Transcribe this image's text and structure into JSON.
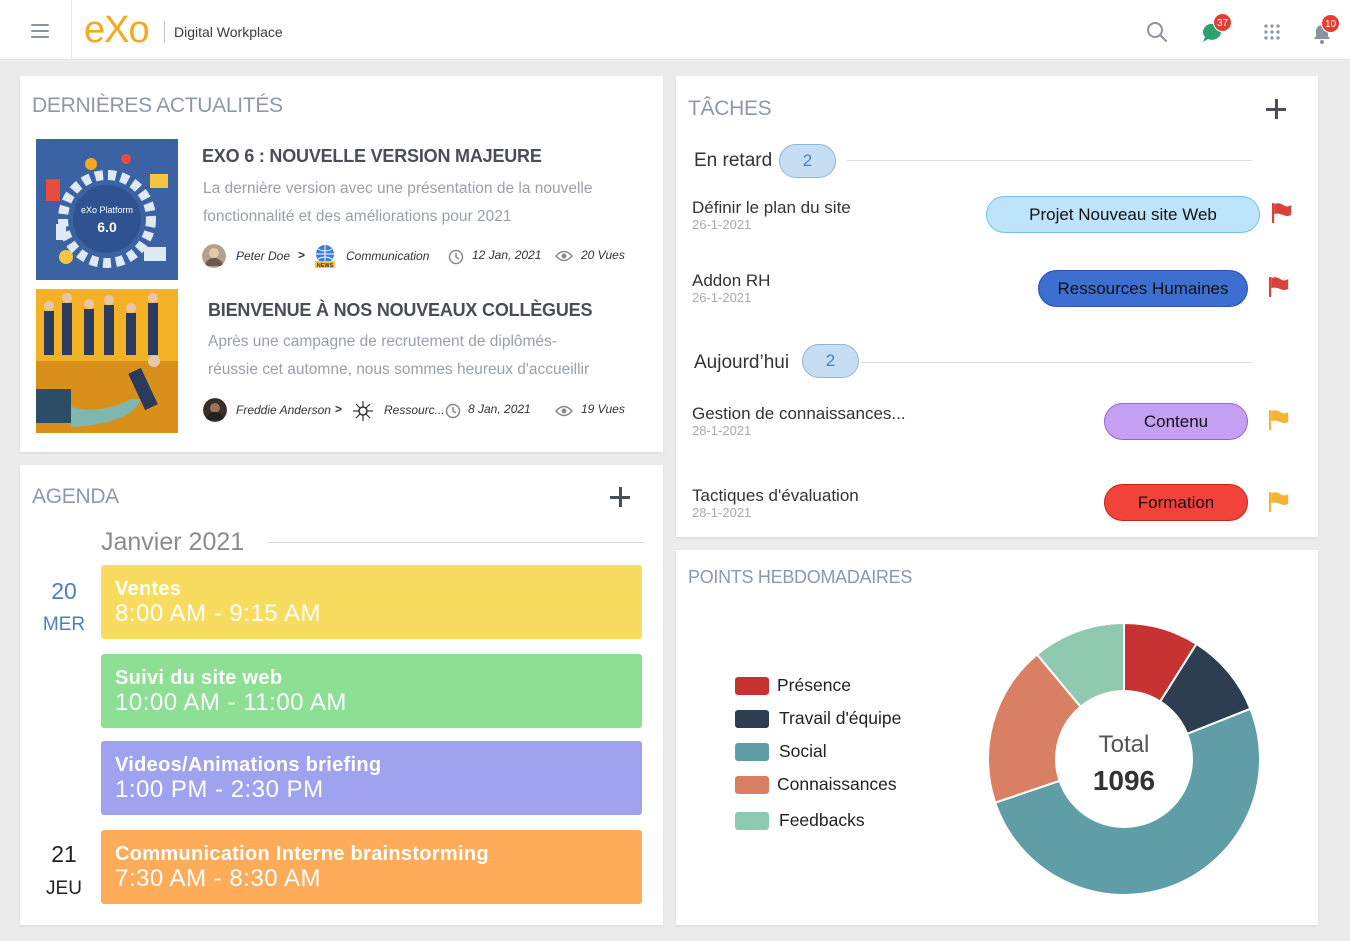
{
  "header": {
    "logo": "eXo",
    "brand": "Digital Workplace",
    "chat_badge": "37",
    "notif_badge": "10"
  },
  "news": {
    "title": "DERNIÈRES ACTUALITÉS",
    "items": [
      {
        "title": "EXO 6 : NOUVELLE VERSION MAJEURE",
        "desc_line1": "La dernière version avec une présentation de la nouvelle",
        "desc_line2": "fonctionnalité et des améliorations pour 2021",
        "author": "Peter Doe",
        "space": "Communication",
        "date": "12 Jan, 2021",
        "views": "20 Vues",
        "image_label1": "eXo Platform",
        "image_label2": "6.0"
      },
      {
        "title": "BIENVENUE À NOS NOUVEAUX COLLÈGUES",
        "desc_line1": "Après une campagne de recrutement de diplômés-",
        "desc_line2": "réussie cet automne, nous sommes heureux d'accueillir",
        "author": "Freddie Anderson",
        "space": "Ressourc...",
        "date": "8 Jan, 2021",
        "views": "19 Vues"
      }
    ]
  },
  "agenda": {
    "title": "AGENDA",
    "month": "Janvier 2021",
    "days": [
      {
        "num": "20",
        "name": "MER"
      },
      {
        "num": "21",
        "name": "JEU"
      }
    ],
    "events": [
      {
        "title": "Ventes",
        "time": "8:00 AM - 9:15 AM",
        "color": "#f8dc5f"
      },
      {
        "title": "Suivi du site web",
        "time": "10:00 AM - 11:00 AM",
        "color": "#8ddf93"
      },
      {
        "title": "Videos/Animations briefing",
        "time": "1:00 PM - 2:30 PM",
        "color": "#9fa2ee"
      },
      {
        "title": "Communication Interne brainstorming",
        "time": "7:30 AM - 8:30 AM",
        "color": "#feab5a"
      }
    ]
  },
  "tasks": {
    "title": "TÂCHES",
    "groups": [
      {
        "label": "En retard",
        "count": "2"
      },
      {
        "label": "Aujourd’hui",
        "count": "2"
      }
    ],
    "items": [
      {
        "name": "Définir le plan du site",
        "date": "26-1-2021",
        "tag": "Projet Nouveau site Web",
        "tag_color": "#bde4fa",
        "tag_border": "#77c1ec",
        "flag_color": "#d9413b"
      },
      {
        "name": "Addon RH",
        "date": "26-1-2021",
        "tag": "Ressources Humaines",
        "tag_color": "#3c6fcf",
        "tag_border": "#2a52a8",
        "flag_color": "#d9413b"
      },
      {
        "name": "Gestion de connaissances...",
        "date": "28-1-2021",
        "tag": "Contenu",
        "tag_color": "#c59ff1",
        "tag_border": "#9a63d9",
        "flag_color": "#f5b435"
      },
      {
        "name": "Tactiques d'évaluation",
        "date": "28-1-2021",
        "tag": "Formation",
        "tag_color": "#f2433a",
        "tag_border": "#c9231b",
        "flag_color": "#f5b435"
      }
    ]
  },
  "points": {
    "title": "POINTS HEBDOMADAIRES",
    "total_label": "Total",
    "total_value": "1096",
    "legend": [
      {
        "label": "Présence",
        "color": "#c73232"
      },
      {
        "label": "Travail d'équipe",
        "color": "#2c3e4f"
      },
      {
        "label": "Social",
        "color": "#5f9ea6"
      },
      {
        "label": "Connaissances",
        "color": "#d98064"
      },
      {
        "label": "Feedbacks",
        "color": "#8fc9b0"
      }
    ]
  },
  "chart_data": {
    "type": "pie",
    "categories": [
      "Présence",
      "Travail d'équipe",
      "Social",
      "Connaissances",
      "Feedbacks"
    ],
    "values": [
      98,
      110,
      557,
      210,
      121
    ],
    "colors": [
      "#c73232",
      "#2c3e4f",
      "#5f9ea6",
      "#d98064",
      "#8fc9b0"
    ],
    "title": "POINTS HEBDOMADAIRES",
    "center_label": "Total",
    "center_value": 1096,
    "legend_position": "left"
  }
}
